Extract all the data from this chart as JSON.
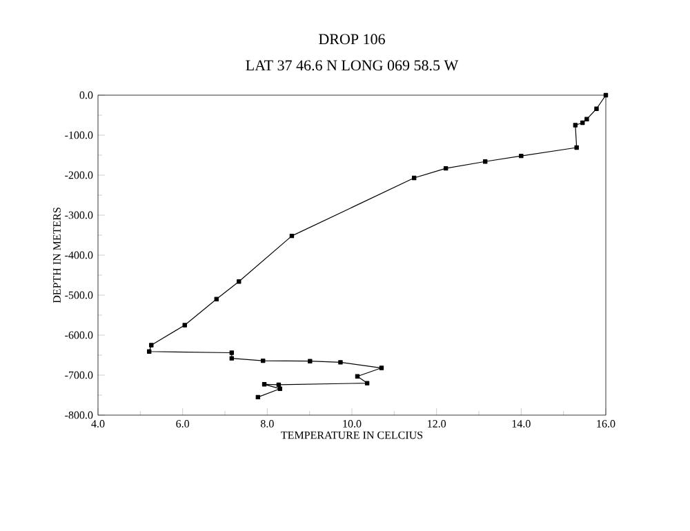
{
  "chart_data": {
    "type": "line",
    "title": "DROP 106",
    "subtitle": "LAT 37 46.6 N LONG 069 58.5 W",
    "xlabel": "TEMPERATURE IN CELCIUS",
    "ylabel": "DEPTH IN METERS",
    "marker": "square",
    "line_style": "solid",
    "grid": false,
    "xlim": [
      4,
      16
    ],
    "ylim": [
      -800,
      0
    ],
    "xticks": [
      {
        "value": 4,
        "label": "4.0"
      },
      {
        "value": 6,
        "label": "6.0"
      },
      {
        "value": 8,
        "label": "8.0"
      },
      {
        "value": 10,
        "label": "10.0"
      },
      {
        "value": 12,
        "label": "12.0"
      },
      {
        "value": 14,
        "label": "14.0"
      },
      {
        "value": 16,
        "label": "16.0"
      }
    ],
    "yticks": [
      {
        "value": 0,
        "label": "0.0"
      },
      {
        "value": -100,
        "label": "-100.0"
      },
      {
        "value": -200,
        "label": "-200.0"
      },
      {
        "value": -300,
        "label": "-300.0"
      },
      {
        "value": -400,
        "label": "-400.0"
      },
      {
        "value": -500,
        "label": "-500.0"
      },
      {
        "value": -600,
        "label": "-600.0"
      },
      {
        "value": -700,
        "label": "-700.0"
      },
      {
        "value": -800,
        "label": "-800.0"
      }
    ],
    "series": [
      {
        "color": "#000000",
        "x": [
          16.0,
          15.78,
          15.55,
          15.45,
          15.28,
          15.31,
          14.0,
          13.15,
          12.22,
          11.47,
          8.58,
          7.33,
          6.8,
          6.05,
          5.26,
          5.21,
          7.16,
          7.16,
          7.9,
          9.01,
          9.73,
          10.7,
          10.13,
          10.36,
          8.27,
          7.93,
          8.3,
          7.78
        ],
        "values": [
          0,
          -34,
          -60,
          -69,
          -75,
          -131,
          -152,
          -166,
          -183,
          -207,
          -352,
          -466,
          -510,
          -575,
          -625,
          -641,
          -644,
          -658,
          -664,
          -665,
          -668,
          -682,
          -703,
          -720,
          -724,
          -723,
          -734,
          -755
        ]
      }
    ]
  }
}
